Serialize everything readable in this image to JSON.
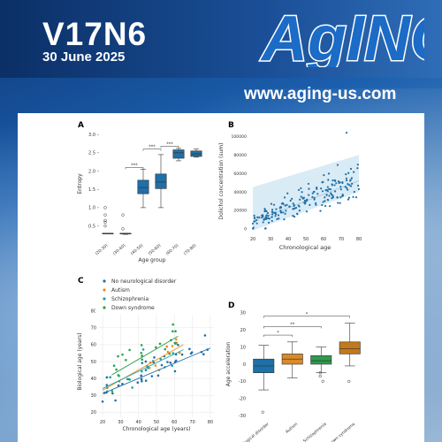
{
  "header": {
    "volume_issue": "V17N6",
    "date": "30 June 2025",
    "logo_text": "AgING",
    "url": "www.aging-us.com"
  },
  "colors": {
    "banner": "#0b2f66",
    "box_blue": "#1f6fa8",
    "orange": "#ef8a17",
    "green": "#2aa24a",
    "teal": "#1fa3a0",
    "band": "#cfe6f3"
  },
  "panels": {
    "a": "A",
    "b": "B",
    "c": "C",
    "d": "D"
  },
  "chart_data": [
    {
      "type": "box",
      "panel": "A",
      "ylabel": "Entropy",
      "xlabel": "Age group",
      "categories": [
        "(20-30)",
        "(30-40)",
        "(40-50)",
        "(50-60)",
        "(60-70)",
        "(70-80)"
      ],
      "boxes": [
        {
          "min": 0.3,
          "q1": 0.3,
          "median": 0.3,
          "q3": 0.3,
          "max": 0.3,
          "outliers": [
            0.5,
            0.6,
            0.65,
            0.8,
            1.0
          ]
        },
        {
          "min": 0.27,
          "q1": 0.28,
          "median": 0.29,
          "q3": 0.3,
          "max": 0.3,
          "outliers": [
            0.42,
            0.8
          ]
        },
        {
          "min": 1.0,
          "q1": 1.38,
          "median": 1.55,
          "q3": 1.75,
          "max": 2.05,
          "outliers": []
        },
        {
          "min": 1.0,
          "q1": 1.52,
          "median": 1.7,
          "q3": 1.92,
          "max": 2.45,
          "outliers": []
        },
        {
          "min": 2.28,
          "q1": 2.35,
          "median": 2.5,
          "q3": 2.58,
          "max": 2.62,
          "outliers": []
        },
        {
          "min": 2.38,
          "q1": 2.4,
          "median": 2.47,
          "q3": 2.55,
          "max": 2.6,
          "outliers": []
        }
      ],
      "yticks": [
        0.5,
        1.0,
        1.5,
        2.0,
        2.5,
        3.0
      ],
      "ylim": [
        0.2,
        3.1
      ],
      "significance": [
        {
          "from": 1,
          "to": 2,
          "label": "***"
        },
        {
          "from": 2,
          "to": 3,
          "label": "***"
        },
        {
          "from": 3,
          "to": 4,
          "label": "***"
        }
      ]
    },
    {
      "type": "scatter",
      "panel": "B",
      "ylabel": "Dolichol concentration (sum)",
      "xlabel": "Chronological age",
      "xticks": [
        20,
        30,
        40,
        50,
        60,
        70,
        80
      ],
      "yticks": [
        0,
        20000,
        40000,
        60000,
        80000,
        100000
      ],
      "xlim": [
        18,
        81
      ],
      "ylim": [
        -5000,
        108000
      ],
      "trend": {
        "x0": 20,
        "y0": 8000,
        "x1": 80,
        "y1": 52000
      },
      "band": {
        "lower0": -2000,
        "upper0": 45000,
        "lower1": 40000,
        "upper1": 80000
      }
    },
    {
      "type": "scatter",
      "panel": "C",
      "ylabel": "Biological age (years)",
      "xlabel": "Chronological age (years)",
      "xticks": [
        20,
        30,
        40,
        50,
        60,
        70,
        80
      ],
      "yticks": [
        20,
        30,
        40,
        50,
        60,
        70,
        80
      ],
      "xlim": [
        18,
        82
      ],
      "ylim": [
        17,
        83
      ],
      "legend": [
        "No neurological disorder",
        "Autism",
        "Schizophrenia",
        "Down syndrome"
      ]
    },
    {
      "type": "box",
      "panel": "D",
      "ylabel": "Age acceleration",
      "categories": [
        "No neurological disorder",
        "Autism",
        "Schizophrenia",
        "Down syndrome"
      ],
      "boxes": [
        {
          "min": -15,
          "q1": -5,
          "median": -1,
          "q3": 3,
          "max": 11,
          "outliers": [
            -28
          ]
        },
        {
          "min": -8,
          "q1": 0,
          "median": 3,
          "q3": 6,
          "max": 13,
          "outliers": []
        },
        {
          "min": -5,
          "q1": 0,
          "median": 2,
          "q3": 5,
          "max": 10,
          "outliers": [
            -7,
            -10,
            -5
          ]
        },
        {
          "min": -1,
          "q1": 6,
          "median": 9,
          "q3": 13,
          "max": 24,
          "outliers": [
            -10
          ]
        }
      ],
      "yticks": [
        -30,
        -20,
        -10,
        0,
        10,
        20,
        30
      ],
      "ylim": [
        -32,
        32
      ],
      "significance": [
        {
          "from": 0,
          "to": 1,
          "label": "*"
        },
        {
          "from": 0,
          "to": 2,
          "label": "**"
        },
        {
          "from": 0,
          "to": 3,
          "label": "*"
        }
      ]
    }
  ]
}
